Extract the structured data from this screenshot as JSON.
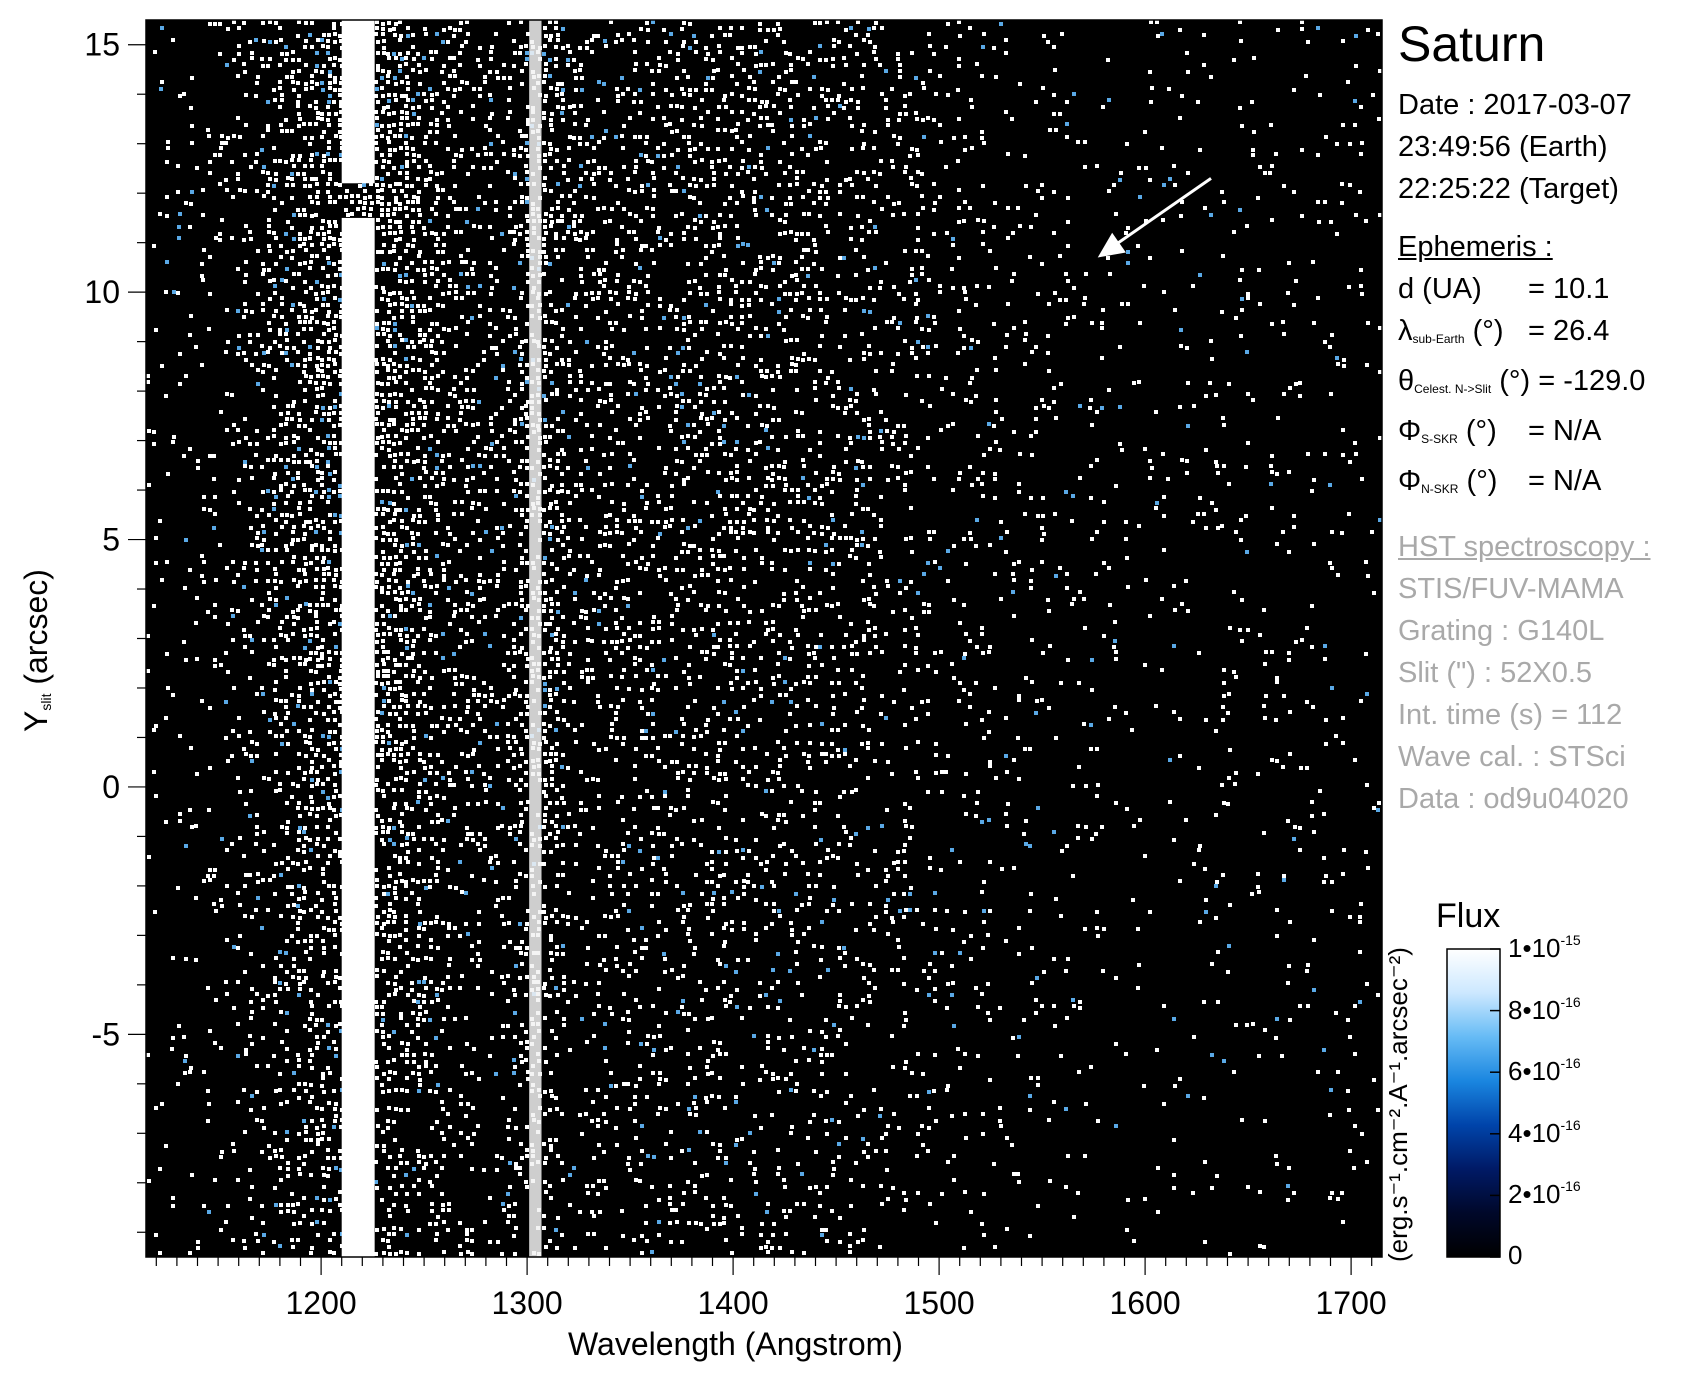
{
  "chart_data": {
    "type": "heatmap",
    "description_target": "Saturn",
    "xlabel": "Wavelength (Angstrom)",
    "ylabel_main": "Y",
    "ylabel_sub": "slit",
    "ylabel_unit": "(arcsec)",
    "xlim": [
      1115,
      1715
    ],
    "ylim": [
      -9.5,
      15.5
    ],
    "x_ticks": [
      1200,
      1300,
      1400,
      1500,
      1600,
      1700
    ],
    "y_ticks": [
      15,
      10,
      5,
      0,
      -5
    ],
    "x_tick_labels": [
      "1200",
      "1300",
      "1400",
      "1500",
      "1600",
      "1700"
    ],
    "y_tick_labels": [
      "15",
      "10",
      "5",
      "0",
      "-5"
    ],
    "emission_lines": [
      {
        "wavelength": 1216,
        "note": "saturated"
      },
      {
        "wavelength": 1304,
        "note": "bright"
      }
    ],
    "annotation_arrow": {
      "from": [
        1632,
        12.3
      ],
      "to": [
        1577,
        10.7
      ]
    },
    "colorbar": {
      "title": "Flux",
      "label": "(erg.s⁻¹.cm⁻².A⁻¹.arcsec⁻²)",
      "range": [
        0,
        1e-15
      ],
      "ticks": [
        {
          "value": 1e-15,
          "mantissa": "1•10",
          "exp": "-15"
        },
        {
          "value": 8e-16,
          "mantissa": "8•10",
          "exp": "-16"
        },
        {
          "value": 6e-16,
          "mantissa": "6•10",
          "exp": "-16"
        },
        {
          "value": 4e-16,
          "mantissa": "4•10",
          "exp": "-16"
        },
        {
          "value": 2e-16,
          "mantissa": "2•10",
          "exp": "-16"
        },
        {
          "value": 0,
          "mantissa": "0",
          "exp": ""
        }
      ],
      "colors": [
        "#000000",
        "#00082a",
        "#001a66",
        "#0044aa",
        "#1a86e0",
        "#66bbf5",
        "#cce8ff",
        "#ffffff"
      ]
    }
  },
  "panel": {
    "title": "Saturn",
    "date_line": "Date : 2017-03-07",
    "earth_time": "23:49:56 (Earth)",
    "target_time": "22:25:22 (Target)",
    "ephemeris_heading": "Ephemeris :",
    "ephemeris": {
      "d_label": "d (UA)",
      "d_value": "= 10.1",
      "lambda_symbol": "λ",
      "lambda_sub": "sub-Earth",
      "lambda_unit": "(°)",
      "lambda_value": "= 26.4",
      "theta_symbol": "θ",
      "theta_sub": "Celest. N->Slit",
      "theta_unit": "(°)",
      "theta_value": "= -129.0",
      "phi_s_symbol": "Φ",
      "phi_s_sub": "S-SKR",
      "phi_s_unit": "(°)",
      "phi_s_value": "= N/A",
      "phi_n_symbol": "Φ",
      "phi_n_sub": "N-SKR",
      "phi_n_unit": "(°)",
      "phi_n_value": "= N/A"
    },
    "hst_heading": "HST spectroscopy :",
    "instrument": "STIS/FUV-MAMA",
    "grating": "Grating : G140L",
    "slit": "Slit (\") : 52X0.5",
    "int_time": "Int. time (s) = 112",
    "wave_cal": "Wave cal. : STSci",
    "data_id": "Data : od9u04020"
  }
}
